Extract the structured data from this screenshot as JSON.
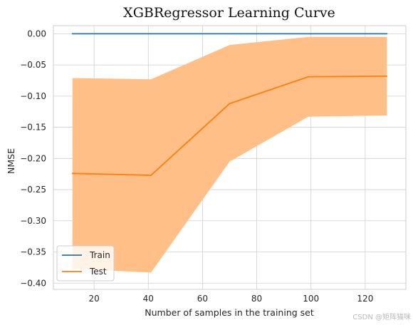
{
  "chart_data": {
    "type": "line",
    "title": "XGBRegressor Learning Curve",
    "xlabel": "Number of samples in the training set",
    "ylabel": "NMSE",
    "xlim": [
      5,
      135
    ],
    "ylim": [
      -0.41,
      0.013
    ],
    "xticks": [
      20,
      40,
      60,
      80,
      100,
      120
    ],
    "yticks": [
      0.0,
      -0.05,
      -0.1,
      -0.15,
      -0.2,
      -0.25,
      -0.3,
      -0.35,
      -0.4
    ],
    "ytick_labels": [
      "0.00",
      "−0.05",
      "−0.10",
      "−0.15",
      "−0.20",
      "−0.25",
      "−0.30",
      "−0.35",
      "−0.40"
    ],
    "grid": true,
    "legend_position": "lower-left",
    "x": [
      12,
      41,
      70,
      99,
      128
    ],
    "series": [
      {
        "name": "Train",
        "color": "#1f77b4",
        "values": [
          0.0,
          0.0,
          0.0,
          0.0,
          0.0
        ]
      },
      {
        "name": "Test",
        "color": "#ff7f0e",
        "band_color": "#ffbf87",
        "values": [
          -0.224,
          -0.227,
          -0.112,
          -0.069,
          -0.068
        ],
        "band_upper": [
          -0.071,
          -0.073,
          -0.018,
          -0.005,
          -0.005
        ],
        "band_lower": [
          -0.377,
          -0.383,
          -0.205,
          -0.133,
          -0.131
        ]
      }
    ]
  },
  "watermark": "CSDN @矩阵猫咪"
}
